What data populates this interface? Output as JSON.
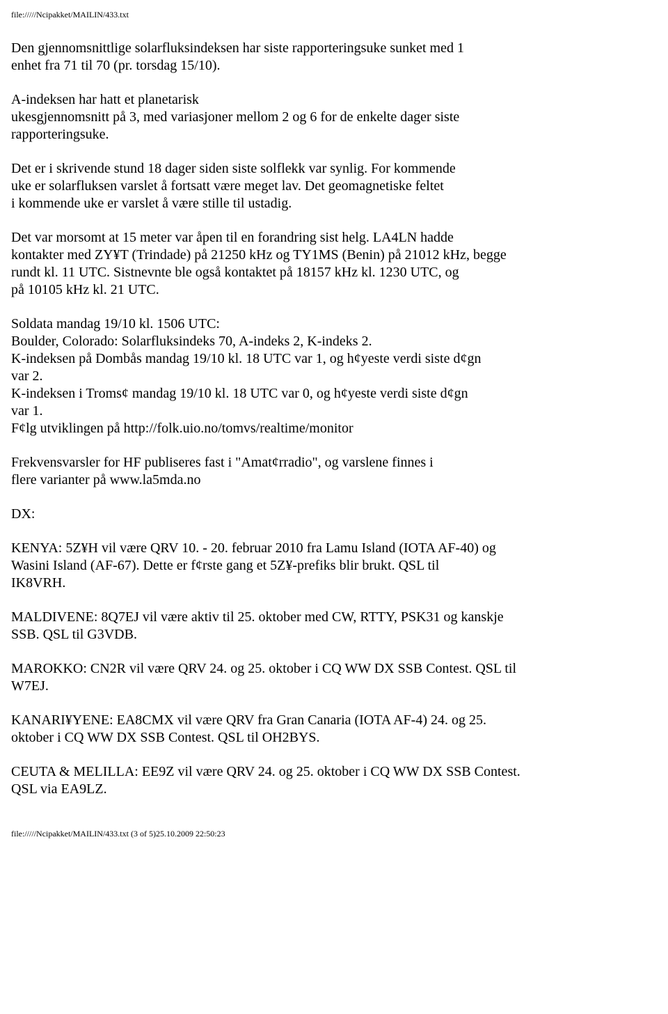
{
  "header": {
    "path": "file://///Ncipakket/MAILIN/433.txt"
  },
  "paragraphs": {
    "p1": {
      "l1": "Den gjennomsnittlige solarfluksindeksen har siste rapporteringsuke sunket med 1",
      "l2": "enhet fra 71 til 70 (pr. torsdag 15/10)."
    },
    "p2": {
      "l1": "A-indeksen har hatt et planetarisk",
      "l2": "ukesgjennomsnitt på 3, med variasjoner mellom 2 og 6 for de enkelte dager siste",
      "l3": "rapporteringsuke."
    },
    "p3": {
      "l1": "Det er i skrivende stund 18 dager siden siste solflekk var synlig. For kommende",
      "l2": "uke er solarfluksen varslet å fortsatt være meget lav. Det geomagnetiske feltet",
      "l3": "i kommende uke er varslet å være stille til ustadig."
    },
    "p4": {
      "l1": "Det var morsomt at 15 meter var åpen til en forandring sist helg. LA4LN hadde",
      "l2": "kontakter med ZY¥T (Trindade) på 21250 kHz og TY1MS (Benin) på 21012 kHz, begge",
      "l3": "rundt kl. 11 UTC. Sistnevnte ble også kontaktet på 18157 kHz kl. 1230 UTC, og",
      "l4": "på 10105 kHz kl. 21 UTC."
    },
    "p5": {
      "l1": "Soldata mandag 19/10 kl. 1506 UTC:",
      "l2": "Boulder, Colorado: Solarfluksindeks 70, A-indeks 2, K-indeks 2.",
      "l3": "K-indeksen på Dombås mandag 19/10 kl. 18 UTC var 1, og h¢yeste verdi siste d¢gn",
      "l4": "var 2.",
      "l5": "K-indeksen i Troms¢ mandag 19/10 kl. 18 UTC var 0, og h¢yeste verdi siste d¢gn",
      "l6": "var 1.",
      "l7": "F¢lg utviklingen på http://folk.uio.no/tomvs/realtime/monitor"
    },
    "p6": {
      "l1": "Frekvensvarsler for HF publiseres fast i \"Amat¢rradio\", og varslene finnes i",
      "l2": "flere varianter på www.la5mda.no"
    },
    "p7": {
      "l1": "DX:"
    },
    "p8": {
      "l1": "KENYA: 5Z¥H vil være QRV 10. - 20. februar 2010 fra Lamu Island (IOTA AF-40) og",
      "l2": "Wasini Island (AF-67). Dette er f¢rste gang et 5Z¥-prefiks blir brukt. QSL til",
      "l3": "IK8VRH."
    },
    "p9": {
      "l1": "MALDIVENE: 8Q7EJ vil være aktiv til 25. oktober med CW, RTTY, PSK31 og kanskje",
      "l2": "SSB. QSL til G3VDB."
    },
    "p10": {
      "l1": "MAROKKO: CN2R vil være QRV 24. og 25. oktober i CQ WW DX SSB Contest. QSL til",
      "l2": "W7EJ."
    },
    "p11": {
      "l1": "KANARI¥YENE: EA8CMX vil være QRV fra Gran Canaria (IOTA AF-4) 24. og 25.",
      "l2": "oktober i CQ WW DX SSB Contest. QSL til OH2BYS."
    },
    "p12": {
      "l1": "CEUTA & MELILLA: EE9Z vil være QRV 24. og 25. oktober i CQ WW DX SSB Contest.",
      "l2": "QSL via EA9LZ."
    }
  },
  "footer": {
    "path": "file://///Ncipakket/MAILIN/433.txt (3 of 5)25.10.2009 22:50:23"
  }
}
